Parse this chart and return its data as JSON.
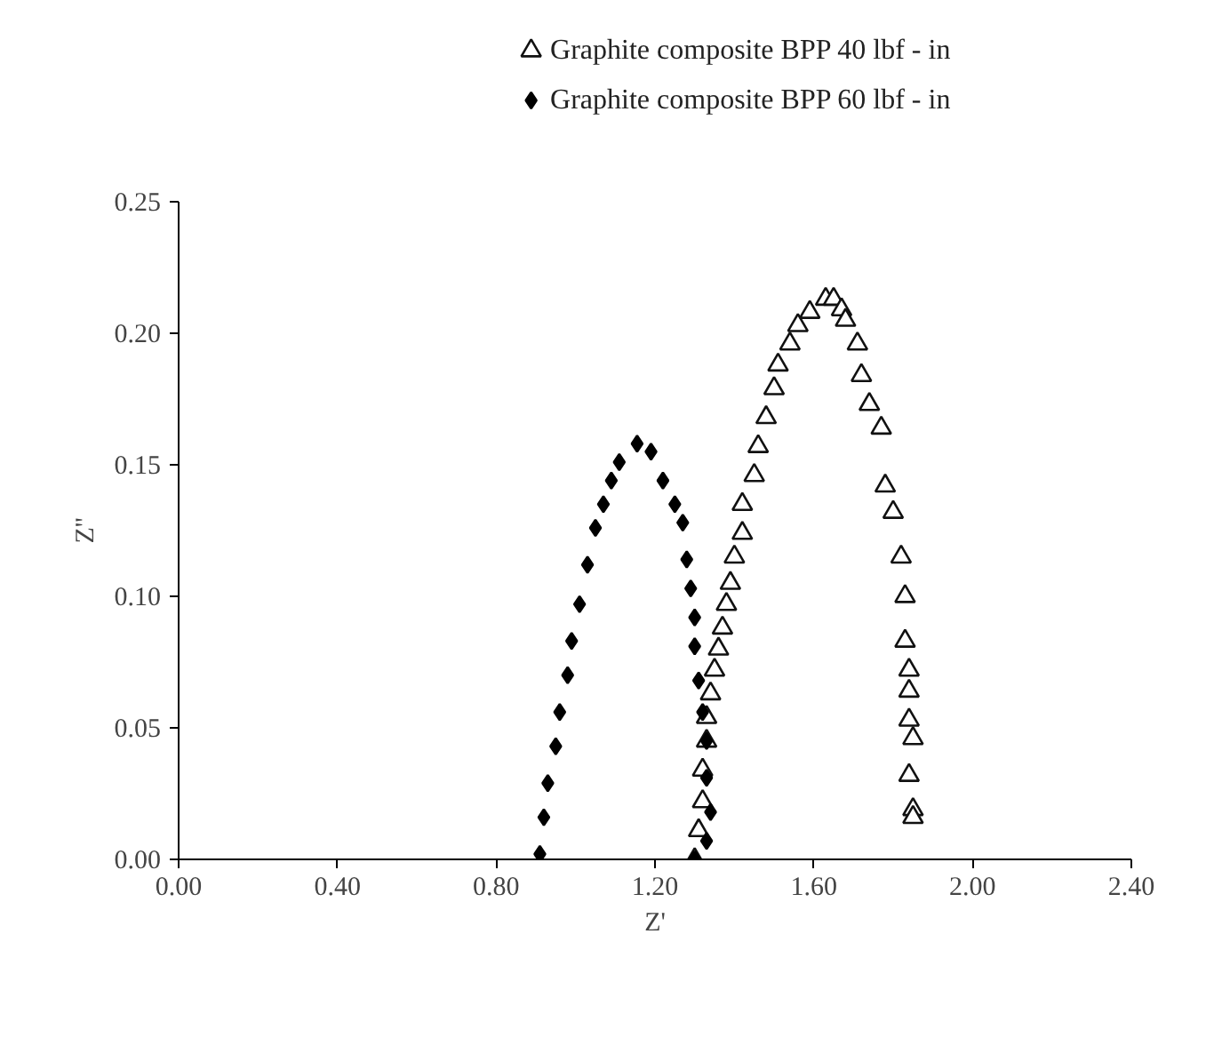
{
  "chart_data": {
    "type": "scatter",
    "xlabel": "Z'",
    "ylabel": "Z''",
    "xlim": [
      0,
      2.4
    ],
    "ylim": [
      0,
      0.25
    ],
    "xticks": [
      {
        "value": 0,
        "label": "0.00"
      },
      {
        "value": 0.4,
        "label": "0.40"
      },
      {
        "value": 0.8,
        "label": "0.80"
      },
      {
        "value": 1.2,
        "label": "1.20"
      },
      {
        "value": 1.6,
        "label": "1.60"
      },
      {
        "value": 2.0,
        "label": "2.00"
      },
      {
        "value": 2.4,
        "label": "2.40"
      }
    ],
    "yticks": [
      {
        "value": 0,
        "label": "0.00"
      },
      {
        "value": 0.05,
        "label": "0.05"
      },
      {
        "value": 0.1,
        "label": "0.10"
      },
      {
        "value": 0.15,
        "label": "0.15"
      },
      {
        "value": 0.2,
        "label": "0.20"
      },
      {
        "value": 0.25,
        "label": "0.25"
      }
    ],
    "grid": false,
    "legend": "top",
    "series": [
      {
        "name": "Graphite composite BPP   40 lbf - in",
        "color": "#111111",
        "marker": "triangle",
        "x": [
          1.3,
          1.31,
          1.32,
          1.32,
          1.33,
          1.33,
          1.34,
          1.35,
          1.36,
          1.37,
          1.38,
          1.39,
          1.4,
          1.42,
          1.42,
          1.45,
          1.46,
          1.48,
          1.5,
          1.51,
          1.54,
          1.56,
          1.59,
          1.63,
          1.65,
          1.67,
          1.68,
          1.71,
          1.72,
          1.74,
          1.77,
          1.78,
          1.8,
          1.82,
          1.83,
          1.83,
          1.84,
          1.84,
          1.84,
          1.85,
          1.84,
          1.85,
          1.85
        ],
        "values": [
          0.0,
          0.011,
          0.022,
          0.034,
          0.045,
          0.054,
          0.063,
          0.072,
          0.08,
          0.088,
          0.097,
          0.105,
          0.115,
          0.124,
          0.135,
          0.146,
          0.157,
          0.168,
          0.179,
          0.188,
          0.196,
          0.203,
          0.208,
          0.213,
          0.213,
          0.209,
          0.205,
          0.196,
          0.184,
          0.173,
          0.164,
          0.142,
          0.132,
          0.115,
          0.1,
          0.083,
          0.072,
          0.064,
          0.053,
          0.046,
          0.032,
          0.019,
          0.016
        ]
      },
      {
        "name": "Graphite composite BPP   60 lbf - in",
        "color": "#000000",
        "marker": "diamond",
        "x": [
          0.91,
          0.92,
          0.93,
          0.95,
          0.96,
          0.98,
          0.99,
          1.01,
          1.03,
          1.05,
          1.07,
          1.09,
          1.11,
          1.155,
          1.19,
          1.22,
          1.25,
          1.27,
          1.28,
          1.29,
          1.3,
          1.3,
          1.31,
          1.32,
          1.33,
          1.33,
          1.34,
          1.33,
          1.3
        ],
        "values": [
          0.002,
          0.016,
          0.029,
          0.043,
          0.056,
          0.07,
          0.083,
          0.097,
          0.112,
          0.126,
          0.135,
          0.144,
          0.151,
          0.158,
          0.155,
          0.144,
          0.135,
          0.128,
          0.114,
          0.103,
          0.092,
          0.081,
          0.068,
          0.056,
          0.045,
          0.031,
          0.018,
          0.007,
          0.0
        ]
      }
    ]
  }
}
